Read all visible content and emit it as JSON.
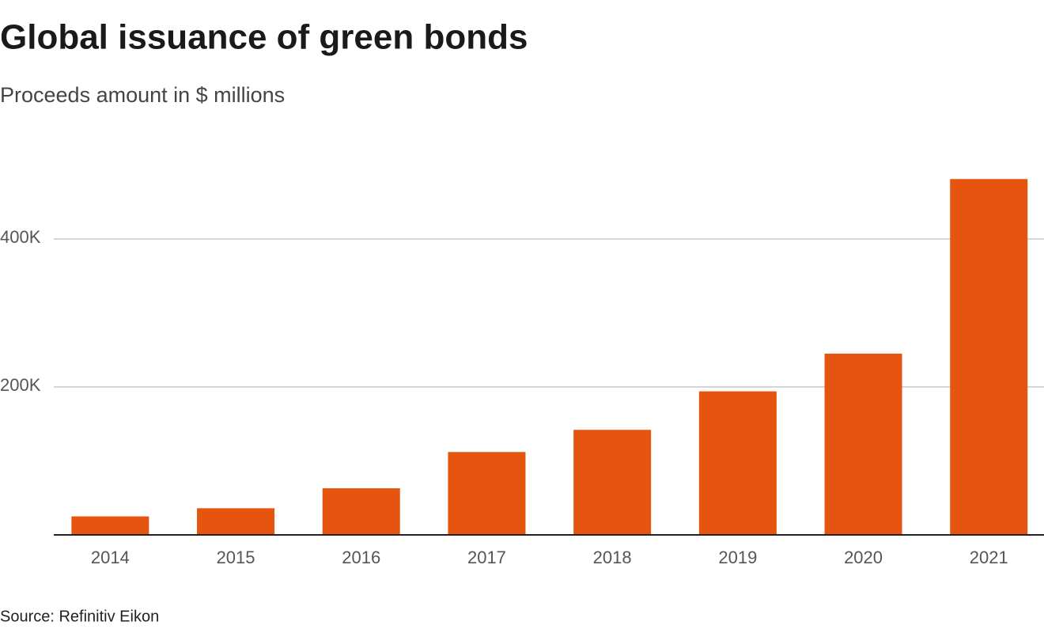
{
  "chart_data": {
    "type": "bar",
    "title": "Global issuance of green bonds",
    "subtitle": "Proceeds amount in $ millions",
    "source": "Source: Refinitiv Eikon",
    "categories": [
      "2014",
      "2015",
      "2016",
      "2017",
      "2018",
      "2019",
      "2020",
      "2021"
    ],
    "values": [
      25000,
      36000,
      63000,
      112000,
      142000,
      194000,
      245000,
      481000
    ],
    "color": "#e5550f",
    "ylim": [
      0,
      500000
    ],
    "yticks": [
      {
        "value": 200000,
        "label": "200K"
      },
      {
        "value": 400000,
        "label": "400K"
      }
    ],
    "grid": true
  }
}
